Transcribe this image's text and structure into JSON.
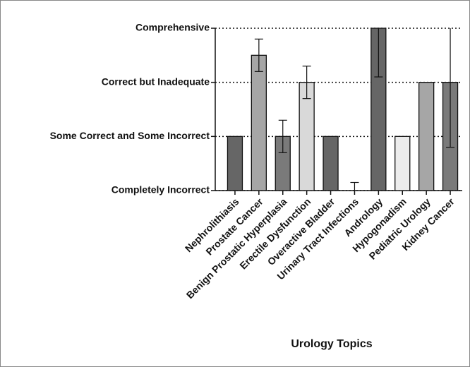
{
  "chart_data": {
    "type": "bar",
    "x_label": "Urology Topics",
    "categories": [
      "Nephrolithiasis",
      "Prostate Cancer",
      "Benign Prostatic Hyperplasia",
      "Erectile Dysfunction",
      "Overactive Bladder",
      "Urinary Tract Infections",
      "Andrology",
      "Hypogonadism",
      "Pediatric Urology",
      "Kidney Cancer"
    ],
    "values": [
      2,
      3.5,
      2,
      3,
      2,
      1,
      4,
      2,
      3,
      3
    ],
    "errors": [
      0,
      0.3,
      0.3,
      0.3,
      0,
      0.15,
      0.9,
      0,
      0,
      1.2
    ],
    "colors": [
      "#666666",
      "#a6a6a6",
      "#7a7a7a",
      "#d9d9d9",
      "#666666",
      "#666666",
      "#666666",
      "#ececec",
      "#a6a6a6",
      "#7a7a7a"
    ],
    "ylim": [
      1,
      4
    ],
    "yticks": [
      {
        "value": 1,
        "label": "Completely Incorrect"
      },
      {
        "value": 2,
        "label": "Some Correct and Some Incorrect"
      },
      {
        "value": 3,
        "label": "Correct but Inadequate"
      },
      {
        "value": 4,
        "label": "Comprehensive"
      }
    ],
    "grid": true
  }
}
